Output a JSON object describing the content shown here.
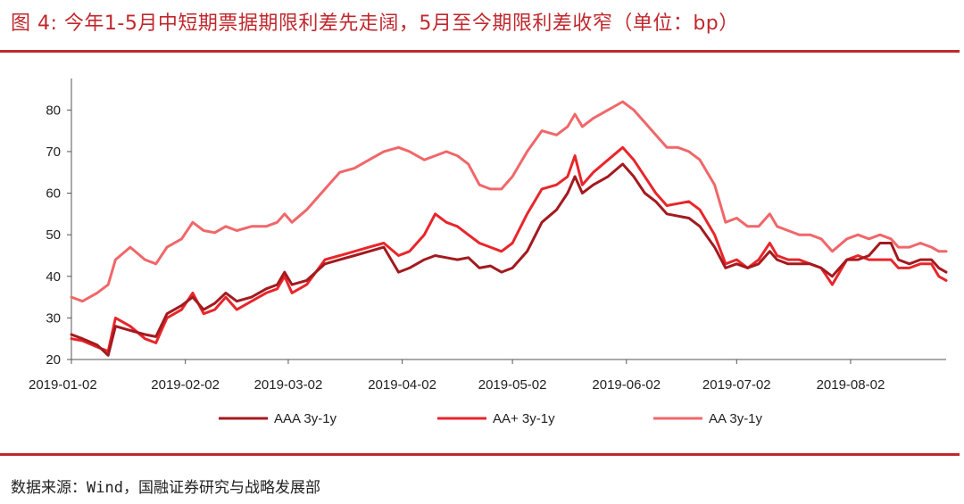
{
  "figure": {
    "title": "图 4:  今年1-5月中短期票据期限利差先走阔，5月至今期限利差收窄（单位：bp）",
    "source": "数据来源：Wind，国融证券研究与战略发展部"
  },
  "chart_data": {
    "type": "line",
    "ylim": [
      20,
      85
    ],
    "yticks": [
      20,
      30,
      40,
      50,
      60,
      70,
      80
    ],
    "xlim": [
      "2019-01-02",
      "2019-08-28"
    ],
    "xticks": [
      "2019-01-02",
      "2019-02-02",
      "2019-03-02",
      "2019-04-02",
      "2019-05-02",
      "2019-06-02",
      "2019-07-02",
      "2019-08-02"
    ],
    "legend_position": "bottom",
    "grid": false,
    "series": [
      {
        "name": "AAA 3y-1y",
        "color": "#a31a1f",
        "points": [
          [
            "2019-01-02",
            26
          ],
          [
            "2019-01-05",
            25
          ],
          [
            "2019-01-09",
            23.5
          ],
          [
            "2019-01-12",
            21
          ],
          [
            "2019-01-14",
            28
          ],
          [
            "2019-01-18",
            27
          ],
          [
            "2019-01-22",
            26
          ],
          [
            "2019-01-25",
            25.5
          ],
          [
            "2019-01-28",
            31
          ],
          [
            "2019-02-01",
            33
          ],
          [
            "2019-02-04",
            35
          ],
          [
            "2019-02-07",
            32
          ],
          [
            "2019-02-10",
            33.5
          ],
          [
            "2019-02-13",
            36
          ],
          [
            "2019-02-16",
            34
          ],
          [
            "2019-02-20",
            35
          ],
          [
            "2019-02-24",
            37
          ],
          [
            "2019-02-27",
            38
          ],
          [
            "2019-03-01",
            41
          ],
          [
            "2019-03-03",
            38
          ],
          [
            "2019-03-07",
            39
          ],
          [
            "2019-03-12",
            43
          ],
          [
            "2019-03-16",
            44
          ],
          [
            "2019-03-20",
            45
          ],
          [
            "2019-03-24",
            46
          ],
          [
            "2019-03-28",
            47
          ],
          [
            "2019-04-01",
            41
          ],
          [
            "2019-04-04",
            42
          ],
          [
            "2019-04-08",
            44
          ],
          [
            "2019-04-11",
            45
          ],
          [
            "2019-04-14",
            44.5
          ],
          [
            "2019-04-17",
            44
          ],
          [
            "2019-04-20",
            44.5
          ],
          [
            "2019-04-23",
            42
          ],
          [
            "2019-04-26",
            42.5
          ],
          [
            "2019-04-29",
            41
          ],
          [
            "2019-05-02",
            42
          ],
          [
            "2019-05-06",
            46
          ],
          [
            "2019-05-10",
            53
          ],
          [
            "2019-05-14",
            56
          ],
          [
            "2019-05-17",
            60
          ],
          [
            "2019-05-19",
            64
          ],
          [
            "2019-05-21",
            60
          ],
          [
            "2019-05-24",
            62
          ],
          [
            "2019-05-28",
            64
          ],
          [
            "2019-06-01",
            67
          ],
          [
            "2019-06-04",
            64
          ],
          [
            "2019-06-07",
            60
          ],
          [
            "2019-06-10",
            58
          ],
          [
            "2019-06-13",
            55
          ],
          [
            "2019-06-16",
            54.5
          ],
          [
            "2019-06-19",
            54
          ],
          [
            "2019-06-22",
            52
          ],
          [
            "2019-06-26",
            47
          ],
          [
            "2019-06-29",
            42
          ],
          [
            "2019-07-02",
            43
          ],
          [
            "2019-07-05",
            42
          ],
          [
            "2019-07-08",
            43
          ],
          [
            "2019-07-11",
            46
          ],
          [
            "2019-07-13",
            44
          ],
          [
            "2019-07-16",
            43
          ],
          [
            "2019-07-19",
            43
          ],
          [
            "2019-07-22",
            43
          ],
          [
            "2019-07-25",
            42
          ],
          [
            "2019-07-28",
            40
          ],
          [
            "2019-08-01",
            44
          ],
          [
            "2019-08-04",
            44
          ],
          [
            "2019-08-07",
            45
          ],
          [
            "2019-08-10",
            48
          ],
          [
            "2019-08-13",
            48
          ],
          [
            "2019-08-15",
            44
          ],
          [
            "2019-08-18",
            43
          ],
          [
            "2019-08-21",
            44
          ],
          [
            "2019-08-24",
            44
          ],
          [
            "2019-08-26",
            42
          ],
          [
            "2019-08-28",
            41
          ]
        ]
      },
      {
        "name": "AA+ 3y-1y",
        "color": "#e8262b",
        "points": [
          [
            "2019-01-02",
            25
          ],
          [
            "2019-01-05",
            24.5
          ],
          [
            "2019-01-09",
            23
          ],
          [
            "2019-01-12",
            22
          ],
          [
            "2019-01-14",
            30
          ],
          [
            "2019-01-18",
            28
          ],
          [
            "2019-01-22",
            25
          ],
          [
            "2019-01-25",
            24
          ],
          [
            "2019-01-28",
            30
          ],
          [
            "2019-02-01",
            32
          ],
          [
            "2019-02-04",
            36
          ],
          [
            "2019-02-07",
            31
          ],
          [
            "2019-02-10",
            32
          ],
          [
            "2019-02-13",
            35
          ],
          [
            "2019-02-16",
            32
          ],
          [
            "2019-02-20",
            34
          ],
          [
            "2019-02-24",
            36
          ],
          [
            "2019-02-27",
            37
          ],
          [
            "2019-03-01",
            40
          ],
          [
            "2019-03-03",
            36
          ],
          [
            "2019-03-07",
            38
          ],
          [
            "2019-03-12",
            44
          ],
          [
            "2019-03-16",
            45
          ],
          [
            "2019-03-20",
            46
          ],
          [
            "2019-03-24",
            47
          ],
          [
            "2019-03-28",
            48
          ],
          [
            "2019-04-01",
            45
          ],
          [
            "2019-04-04",
            46
          ],
          [
            "2019-04-08",
            50
          ],
          [
            "2019-04-11",
            55
          ],
          [
            "2019-04-14",
            53
          ],
          [
            "2019-04-17",
            52
          ],
          [
            "2019-04-20",
            50
          ],
          [
            "2019-04-23",
            48
          ],
          [
            "2019-04-26",
            47
          ],
          [
            "2019-04-29",
            46
          ],
          [
            "2019-05-02",
            48
          ],
          [
            "2019-05-06",
            55
          ],
          [
            "2019-05-10",
            61
          ],
          [
            "2019-05-14",
            62
          ],
          [
            "2019-05-17",
            64
          ],
          [
            "2019-05-19",
            69
          ],
          [
            "2019-05-21",
            62
          ],
          [
            "2019-05-24",
            65
          ],
          [
            "2019-05-28",
            68
          ],
          [
            "2019-06-01",
            71
          ],
          [
            "2019-06-04",
            68
          ],
          [
            "2019-06-07",
            64
          ],
          [
            "2019-06-10",
            60
          ],
          [
            "2019-06-13",
            57
          ],
          [
            "2019-06-16",
            57.5
          ],
          [
            "2019-06-19",
            58
          ],
          [
            "2019-06-22",
            56
          ],
          [
            "2019-06-26",
            50
          ],
          [
            "2019-06-29",
            43
          ],
          [
            "2019-07-02",
            44
          ],
          [
            "2019-07-05",
            42
          ],
          [
            "2019-07-08",
            44
          ],
          [
            "2019-07-11",
            48
          ],
          [
            "2019-07-13",
            45
          ],
          [
            "2019-07-16",
            44
          ],
          [
            "2019-07-19",
            44
          ],
          [
            "2019-07-22",
            43
          ],
          [
            "2019-07-25",
            42
          ],
          [
            "2019-07-28",
            38
          ],
          [
            "2019-08-01",
            44
          ],
          [
            "2019-08-04",
            45
          ],
          [
            "2019-08-07",
            44
          ],
          [
            "2019-08-10",
            44
          ],
          [
            "2019-08-13",
            44
          ],
          [
            "2019-08-15",
            42
          ],
          [
            "2019-08-18",
            42
          ],
          [
            "2019-08-21",
            43
          ],
          [
            "2019-08-24",
            43
          ],
          [
            "2019-08-26",
            40
          ],
          [
            "2019-08-28",
            39
          ]
        ]
      },
      {
        "name": "AA 3y-1y",
        "color": "#f0676a",
        "points": [
          [
            "2019-01-02",
            35
          ],
          [
            "2019-01-05",
            34
          ],
          [
            "2019-01-09",
            36
          ],
          [
            "2019-01-12",
            38
          ],
          [
            "2019-01-14",
            44
          ],
          [
            "2019-01-18",
            47
          ],
          [
            "2019-01-22",
            44
          ],
          [
            "2019-01-25",
            43
          ],
          [
            "2019-01-28",
            47
          ],
          [
            "2019-02-01",
            49
          ],
          [
            "2019-02-04",
            53
          ],
          [
            "2019-02-07",
            51
          ],
          [
            "2019-02-10",
            50.5
          ],
          [
            "2019-02-13",
            52
          ],
          [
            "2019-02-16",
            51
          ],
          [
            "2019-02-20",
            52
          ],
          [
            "2019-02-24",
            52
          ],
          [
            "2019-02-27",
            53
          ],
          [
            "2019-03-01",
            55
          ],
          [
            "2019-03-03",
            53
          ],
          [
            "2019-03-07",
            56
          ],
          [
            "2019-03-12",
            61
          ],
          [
            "2019-03-16",
            65
          ],
          [
            "2019-03-20",
            66
          ],
          [
            "2019-03-24",
            68
          ],
          [
            "2019-03-28",
            70
          ],
          [
            "2019-04-01",
            71
          ],
          [
            "2019-04-04",
            70
          ],
          [
            "2019-04-08",
            68
          ],
          [
            "2019-04-11",
            69
          ],
          [
            "2019-04-14",
            70
          ],
          [
            "2019-04-17",
            69
          ],
          [
            "2019-04-20",
            67
          ],
          [
            "2019-04-23",
            62
          ],
          [
            "2019-04-26",
            61
          ],
          [
            "2019-04-29",
            61
          ],
          [
            "2019-05-02",
            64
          ],
          [
            "2019-05-06",
            70
          ],
          [
            "2019-05-10",
            75
          ],
          [
            "2019-05-14",
            74
          ],
          [
            "2019-05-17",
            76
          ],
          [
            "2019-05-19",
            79
          ],
          [
            "2019-05-21",
            76
          ],
          [
            "2019-05-24",
            78
          ],
          [
            "2019-05-28",
            80
          ],
          [
            "2019-06-01",
            82
          ],
          [
            "2019-06-04",
            80
          ],
          [
            "2019-06-07",
            77
          ],
          [
            "2019-06-10",
            74
          ],
          [
            "2019-06-13",
            71
          ],
          [
            "2019-06-16",
            71
          ],
          [
            "2019-06-19",
            70
          ],
          [
            "2019-06-22",
            68
          ],
          [
            "2019-06-26",
            62
          ],
          [
            "2019-06-29",
            53
          ],
          [
            "2019-07-02",
            54
          ],
          [
            "2019-07-05",
            52
          ],
          [
            "2019-07-08",
            52
          ],
          [
            "2019-07-11",
            55
          ],
          [
            "2019-07-13",
            52
          ],
          [
            "2019-07-16",
            51
          ],
          [
            "2019-07-19",
            50
          ],
          [
            "2019-07-22",
            50
          ],
          [
            "2019-07-25",
            49
          ],
          [
            "2019-07-28",
            46
          ],
          [
            "2019-08-01",
            49
          ],
          [
            "2019-08-04",
            50
          ],
          [
            "2019-08-07",
            49
          ],
          [
            "2019-08-10",
            50
          ],
          [
            "2019-08-13",
            49
          ],
          [
            "2019-08-15",
            47
          ],
          [
            "2019-08-18",
            47
          ],
          [
            "2019-08-21",
            48
          ],
          [
            "2019-08-24",
            47
          ],
          [
            "2019-08-26",
            46
          ],
          [
            "2019-08-28",
            46
          ]
        ]
      }
    ]
  }
}
